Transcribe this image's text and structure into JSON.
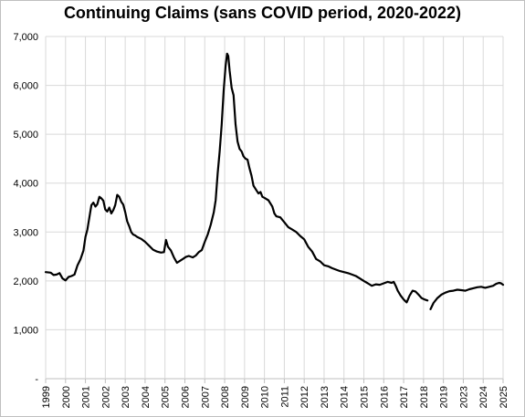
{
  "chart_data": {
    "type": "line",
    "title": "Continuing Claims (sans COVID period, 2020-2022)",
    "xlabel": "",
    "ylabel": "",
    "ylim": [
      0,
      7000
    ],
    "y_ticks": [
      0,
      1000,
      2000,
      3000,
      4000,
      5000,
      6000,
      7000
    ],
    "y_tick_labels": [
      "-",
      "1,000",
      "2,000",
      "3,000",
      "4,000",
      "5,000",
      "6,000",
      "7,000"
    ],
    "x_tick_labels": [
      "1999",
      "2000",
      "2001",
      "2002",
      "2003",
      "2004",
      "2005",
      "2006",
      "2007",
      "2008",
      "2009",
      "2010",
      "2011",
      "2012",
      "2013",
      "2014",
      "2015",
      "2016",
      "2017",
      "2018",
      "2019",
      "2023",
      "2024",
      "2025"
    ],
    "grid": true,
    "legend": "none",
    "colors": {
      "line": "#000000",
      "grid": "#d9d9d9",
      "axis": "#bfbfbf"
    },
    "series": [
      {
        "segments": [
          [
            [
              0.0,
              2180
            ],
            [
              0.25,
              2170
            ],
            [
              0.4,
              2120
            ],
            [
              0.55,
              2130
            ],
            [
              0.7,
              2160
            ],
            [
              0.85,
              2050
            ],
            [
              1.0,
              2010
            ],
            [
              1.15,
              2080
            ],
            [
              1.3,
              2100
            ],
            [
              1.45,
              2130
            ],
            [
              1.6,
              2320
            ],
            [
              1.75,
              2440
            ],
            [
              1.9,
              2620
            ],
            [
              2.0,
              2900
            ],
            [
              2.1,
              3050
            ],
            [
              2.2,
              3300
            ],
            [
              2.3,
              3550
            ],
            [
              2.4,
              3600
            ],
            [
              2.5,
              3520
            ],
            [
              2.6,
              3570
            ],
            [
              2.7,
              3720
            ],
            [
              2.8,
              3690
            ],
            [
              2.9,
              3640
            ],
            [
              3.0,
              3460
            ],
            [
              3.1,
              3420
            ],
            [
              3.2,
              3500
            ],
            [
              3.3,
              3380
            ],
            [
              3.4,
              3450
            ],
            [
              3.5,
              3550
            ],
            [
              3.6,
              3760
            ],
            [
              3.7,
              3720
            ],
            [
              3.8,
              3620
            ],
            [
              3.9,
              3560
            ],
            [
              4.0,
              3410
            ],
            [
              4.1,
              3220
            ],
            [
              4.2,
              3120
            ],
            [
              4.3,
              3000
            ],
            [
              4.4,
              2950
            ],
            [
              4.5,
              2930
            ],
            [
              4.6,
              2900
            ],
            [
              4.8,
              2860
            ],
            [
              5.0,
              2800
            ],
            [
              5.2,
              2720
            ],
            [
              5.4,
              2640
            ],
            [
              5.6,
              2600
            ],
            [
              5.8,
              2580
            ],
            [
              5.95,
              2590
            ],
            [
              6.05,
              2840
            ],
            [
              6.15,
              2700
            ],
            [
              6.3,
              2620
            ],
            [
              6.45,
              2480
            ],
            [
              6.6,
              2370
            ],
            [
              6.75,
              2410
            ],
            [
              6.9,
              2450
            ],
            [
              7.05,
              2490
            ],
            [
              7.2,
              2510
            ],
            [
              7.4,
              2480
            ],
            [
              7.55,
              2520
            ],
            [
              7.7,
              2590
            ],
            [
              7.85,
              2630
            ],
            [
              8.0,
              2800
            ],
            [
              8.15,
              2950
            ],
            [
              8.3,
              3150
            ],
            [
              8.45,
              3400
            ],
            [
              8.55,
              3650
            ],
            [
              8.65,
              4200
            ],
            [
              8.75,
              4650
            ],
            [
              8.85,
              5200
            ],
            [
              8.95,
              5900
            ],
            [
              9.05,
              6400
            ],
            [
              9.12,
              6650
            ],
            [
              9.18,
              6600
            ],
            [
              9.25,
              6300
            ],
            [
              9.35,
              5950
            ],
            [
              9.45,
              5800
            ],
            [
              9.55,
              5200
            ],
            [
              9.65,
              4850
            ],
            [
              9.75,
              4700
            ],
            [
              9.85,
              4650
            ],
            [
              9.95,
              4550
            ],
            [
              10.05,
              4500
            ],
            [
              10.15,
              4480
            ],
            [
              10.25,
              4300
            ],
            [
              10.35,
              4150
            ],
            [
              10.45,
              3950
            ],
            [
              10.6,
              3850
            ],
            [
              10.7,
              3790
            ],
            [
              10.8,
              3820
            ],
            [
              10.9,
              3720
            ],
            [
              11.0,
              3700
            ],
            [
              11.2,
              3650
            ],
            [
              11.4,
              3520
            ],
            [
              11.5,
              3380
            ],
            [
              11.6,
              3320
            ],
            [
              11.8,
              3300
            ],
            [
              12.0,
              3200
            ],
            [
              12.2,
              3100
            ],
            [
              12.4,
              3050
            ],
            [
              12.6,
              3000
            ],
            [
              12.8,
              2920
            ],
            [
              13.0,
              2850
            ],
            [
              13.2,
              2700
            ],
            [
              13.4,
              2600
            ],
            [
              13.6,
              2450
            ],
            [
              13.8,
              2400
            ],
            [
              14.0,
              2320
            ],
            [
              14.2,
              2300
            ],
            [
              14.4,
              2260
            ],
            [
              14.6,
              2230
            ],
            [
              14.8,
              2200
            ],
            [
              15.0,
              2180
            ],
            [
              15.2,
              2160
            ],
            [
              15.4,
              2130
            ],
            [
              15.6,
              2100
            ],
            [
              15.8,
              2050
            ],
            [
              16.0,
              2000
            ],
            [
              16.2,
              1950
            ],
            [
              16.4,
              1900
            ],
            [
              16.6,
              1930
            ],
            [
              16.8,
              1920
            ],
            [
              17.0,
              1950
            ],
            [
              17.2,
              1980
            ],
            [
              17.4,
              1960
            ],
            [
              17.5,
              1980
            ],
            [
              17.6,
              1900
            ],
            [
              17.7,
              1800
            ],
            [
              17.85,
              1700
            ],
            [
              18.0,
              1620
            ],
            [
              18.15,
              1560
            ],
            [
              18.3,
              1700
            ],
            [
              18.45,
              1800
            ],
            [
              18.6,
              1780
            ],
            [
              18.75,
              1720
            ],
            [
              18.9,
              1650
            ],
            [
              19.05,
              1620
            ],
            [
              19.2,
              1600
            ]
          ],
          [
            [
              19.35,
              1420
            ],
            [
              19.5,
              1550
            ],
            [
              19.7,
              1650
            ],
            [
              19.9,
              1720
            ],
            [
              20.1,
              1760
            ],
            [
              20.3,
              1790
            ],
            [
              20.5,
              1800
            ],
            [
              20.7,
              1820
            ],
            [
              20.9,
              1810
            ],
            [
              21.1,
              1800
            ],
            [
              21.3,
              1830
            ],
            [
              21.5,
              1850
            ],
            [
              21.7,
              1870
            ],
            [
              21.9,
              1880
            ],
            [
              22.1,
              1860
            ],
            [
              22.3,
              1880
            ],
            [
              22.5,
              1900
            ],
            [
              22.65,
              1940
            ],
            [
              22.8,
              1960
            ],
            [
              22.9,
              1950
            ],
            [
              23.0,
              1920
            ]
          ]
        ]
      }
    ]
  }
}
